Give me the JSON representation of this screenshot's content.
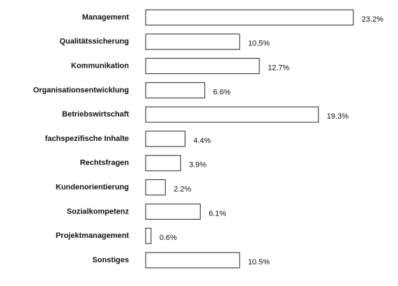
{
  "chart_data": {
    "type": "bar",
    "orientation": "horizontal",
    "categories": [
      "Management",
      "Qualitätssicherung",
      "Kommunikation",
      "Organisationsentwicklung",
      "Betriebswirtschaft",
      "fachspezifische Inhalte",
      "Rechtsfragen",
      "Kundenorientierung",
      "Sozialkompetenz",
      "Projektmanagement",
      "Sonstiges"
    ],
    "values": [
      23.2,
      10.5,
      12.7,
      6.6,
      19.3,
      4.4,
      3.9,
      2.2,
      6.1,
      0.6,
      10.5
    ],
    "value_labels": [
      "23.2%",
      "10.5%",
      "12.7%",
      "6.6%",
      "19.3%",
      "4.4%",
      "3.9%",
      "2.2%",
      "6.1%",
      "0.6%",
      "10.5%"
    ],
    "color": "#222222",
    "xlim": [
      0,
      25
    ]
  }
}
